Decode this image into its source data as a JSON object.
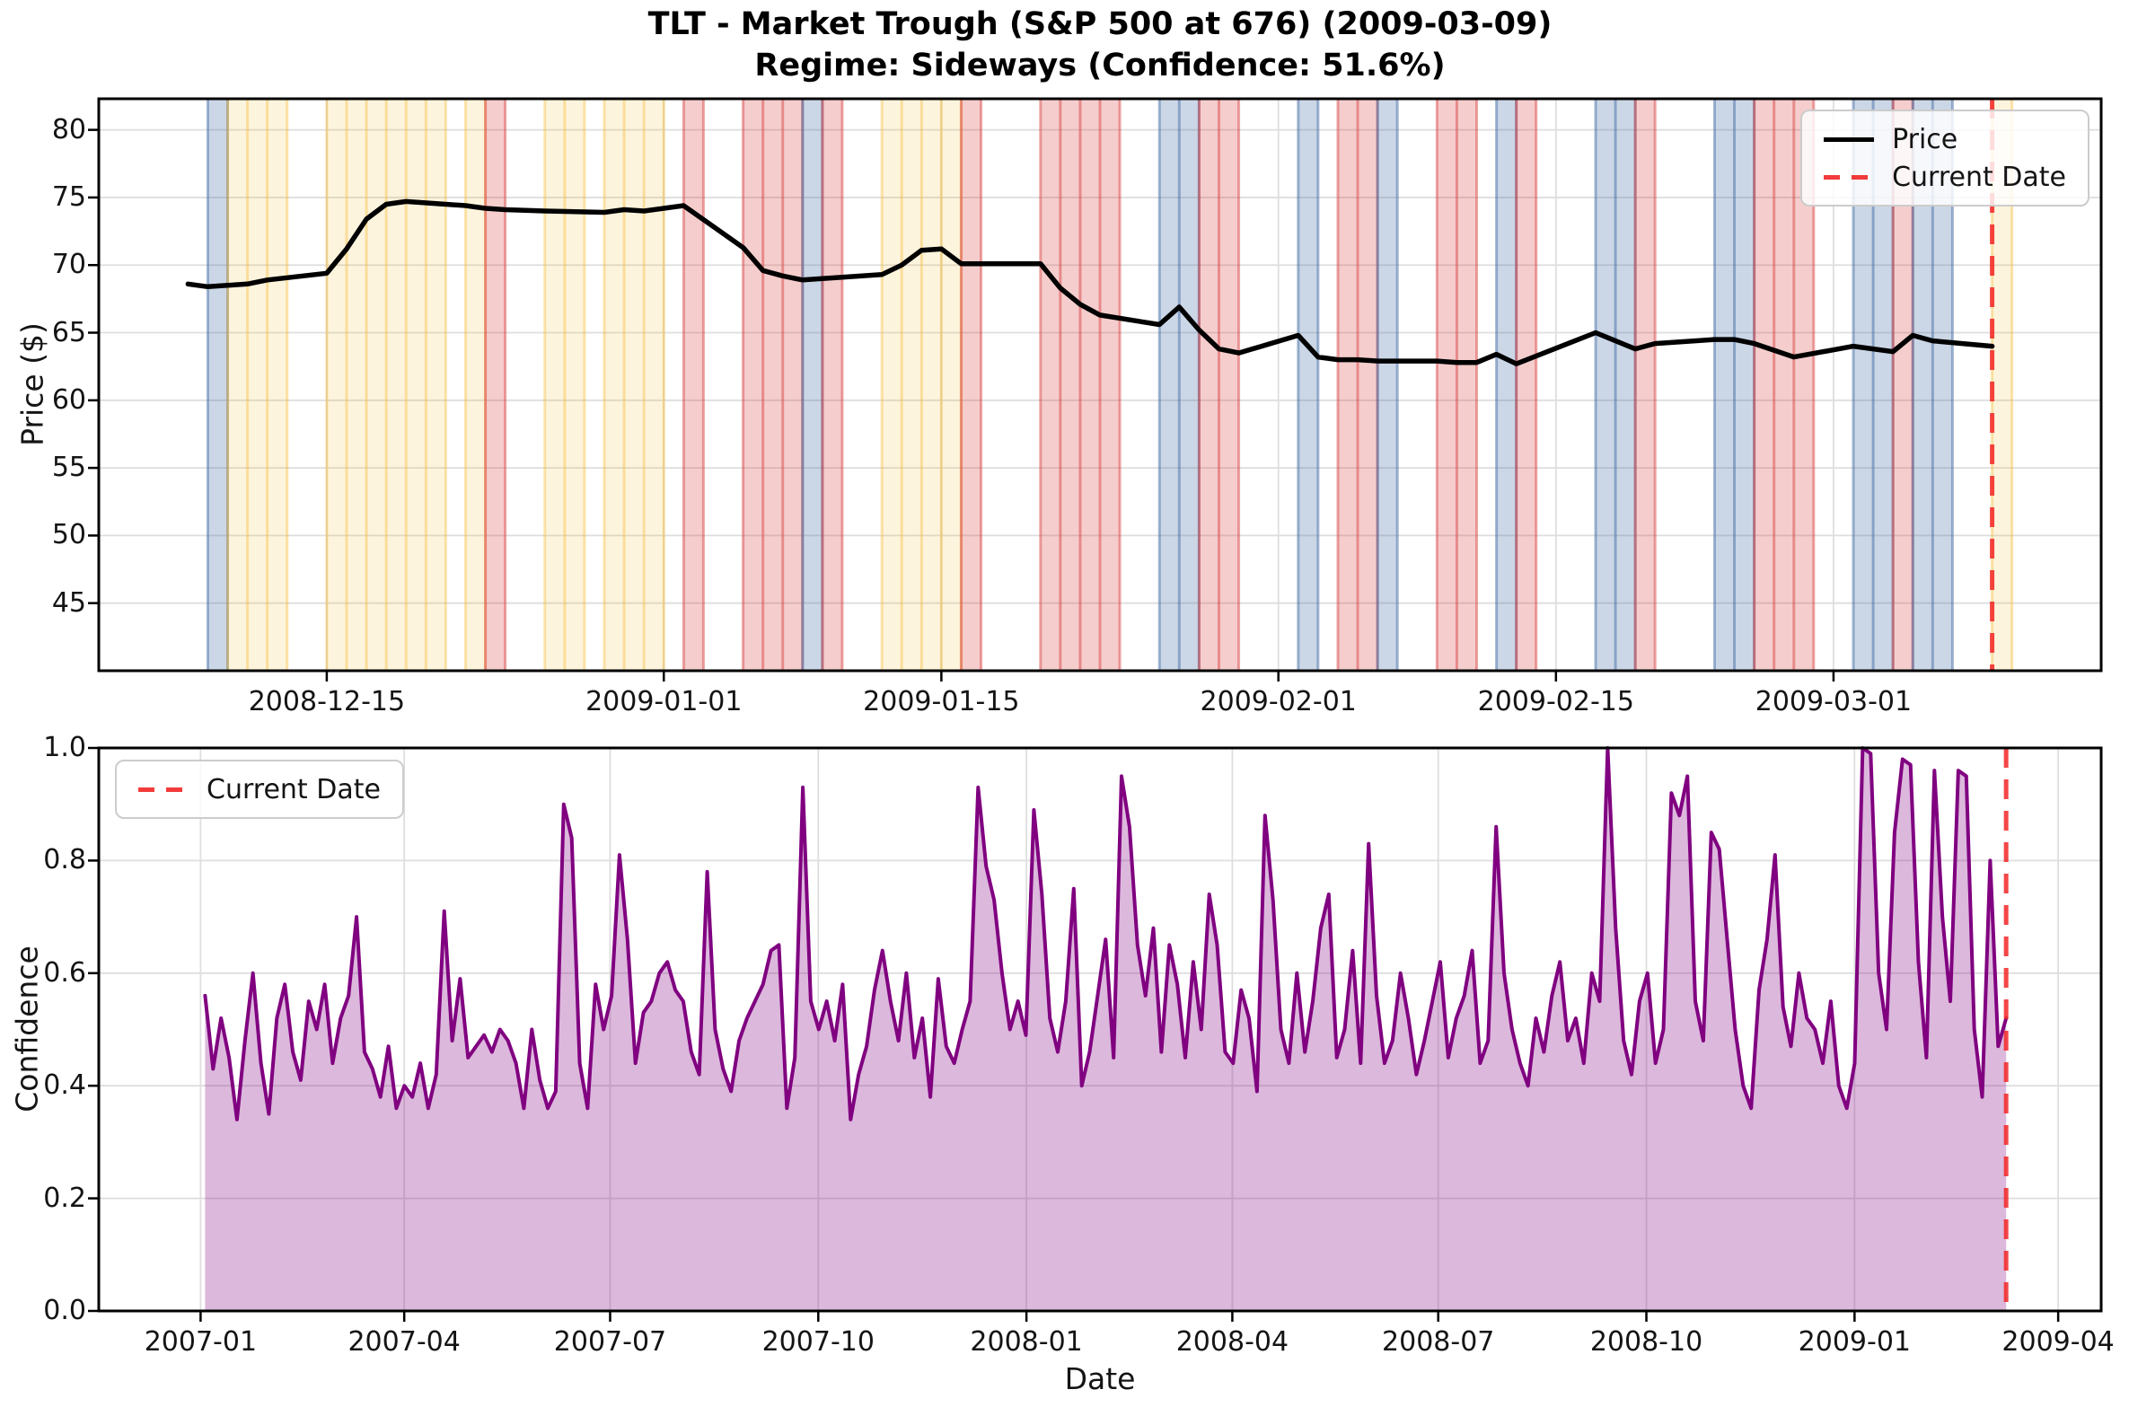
{
  "figure_title": "TLT - Market Trough (S&P 500 at 676) (2009-03-09)",
  "figure_subtitle": "Regime: Sideways (Confidence: 51.6%)",
  "colors": {
    "price_line": "#000000",
    "current_date_line": "rgba(242,38,38,0.85)",
    "confidence_line": "#800080",
    "confidence_fill": "rgba(128,0,128,0.28)",
    "grid": "#dedede",
    "spine": "#000000",
    "legend_border": "#cccccc",
    "regime_blue": "rgba(70,110,165,0.28)",
    "regime_blue_edge": "rgba(70,110,165,0.50)",
    "regime_yellow": "rgba(245,185,45,0.16)",
    "regime_yellow_edge": "rgba(245,185,45,0.38)",
    "regime_red": "rgba(214,57,57,0.25)",
    "regime_red_edge": "rgba(214,57,57,0.45)"
  },
  "chart_data": [
    {
      "id": "price",
      "type": "line",
      "title": "TLT - Market Trough (S&P 500 at 676) (2009-03-09)",
      "subtitle": "Regime: Sideways (Confidence: 51.6%)",
      "ylabel": "Price ($)",
      "xlabel": "",
      "ylim": [
        40,
        82.3
      ],
      "grid": true,
      "legend_position": "upper right",
      "yticks": [
        {
          "v": 45,
          "label": "45"
        },
        {
          "v": 50,
          "label": "50"
        },
        {
          "v": 55,
          "label": "55"
        },
        {
          "v": 60,
          "label": "60"
        },
        {
          "v": 65,
          "label": "65"
        },
        {
          "v": 70,
          "label": "70"
        },
        {
          "v": 75,
          "label": "75"
        },
        {
          "v": 80,
          "label": "80"
        }
      ],
      "x_domain": [
        "2008-12-03T12:00:00Z",
        "2009-03-14T12:00:00Z"
      ],
      "xticks": [
        {
          "date": "2008-12-15",
          "label": "2008-12-15"
        },
        {
          "date": "2009-01-01",
          "label": "2009-01-01"
        },
        {
          "date": "2009-01-15",
          "label": "2009-01-15"
        },
        {
          "date": "2009-02-01",
          "label": "2009-02-01"
        },
        {
          "date": "2009-02-15",
          "label": "2009-02-15"
        },
        {
          "date": "2009-03-01",
          "label": "2009-03-01"
        }
      ],
      "legend": [
        {
          "label": "Price",
          "style": "solid",
          "color": "#000000"
        },
        {
          "label": "Current Date",
          "style": "dashed",
          "color": "rgba(242,38,38,0.9)"
        }
      ],
      "current_date": "2009-03-09",
      "series": [
        {
          "name": "Price",
          "color": "#000000",
          "width": 5.5,
          "points": [
            [
              "2008-12-08",
              68.6
            ],
            [
              "2008-12-09",
              68.4
            ],
            [
              "2008-12-10",
              68.5
            ],
            [
              "2008-12-11",
              68.6
            ],
            [
              "2008-12-12",
              68.9
            ],
            [
              "2008-12-15",
              69.4
            ],
            [
              "2008-12-16",
              71.2
            ],
            [
              "2008-12-17",
              73.4
            ],
            [
              "2008-12-18",
              74.5
            ],
            [
              "2008-12-19",
              74.7
            ],
            [
              "2008-12-22",
              74.4
            ],
            [
              "2008-12-23",
              74.2
            ],
            [
              "2008-12-24",
              74.1
            ],
            [
              "2008-12-26",
              74.0
            ],
            [
              "2008-12-29",
              73.9
            ],
            [
              "2008-12-30",
              74.1
            ],
            [
              "2008-12-31",
              74.0
            ],
            [
              "2009-01-02",
              74.4
            ],
            [
              "2009-01-05",
              71.3
            ],
            [
              "2009-01-06",
              69.6
            ],
            [
              "2009-01-07",
              69.2
            ],
            [
              "2009-01-08",
              68.9
            ],
            [
              "2009-01-09",
              69.0
            ],
            [
              "2009-01-12",
              69.3
            ],
            [
              "2009-01-13",
              70.0
            ],
            [
              "2009-01-14",
              71.1
            ],
            [
              "2009-01-15",
              71.2
            ],
            [
              "2009-01-16",
              70.1
            ],
            [
              "2009-01-20",
              70.1
            ],
            [
              "2009-01-21",
              68.3
            ],
            [
              "2009-01-22",
              67.1
            ],
            [
              "2009-01-23",
              66.3
            ],
            [
              "2009-01-26",
              65.6
            ],
            [
              "2009-01-27",
              66.9
            ],
            [
              "2009-01-28",
              65.2
            ],
            [
              "2009-01-29",
              63.8
            ],
            [
              "2009-01-30",
              63.5
            ],
            [
              "2009-02-02",
              64.8
            ],
            [
              "2009-02-03",
              63.2
            ],
            [
              "2009-02-04",
              63.0
            ],
            [
              "2009-02-05",
              63.0
            ],
            [
              "2009-02-06",
              62.9
            ],
            [
              "2009-02-09",
              62.9
            ],
            [
              "2009-02-10",
              62.8
            ],
            [
              "2009-02-11",
              62.8
            ],
            [
              "2009-02-12",
              63.4
            ],
            [
              "2009-02-13",
              62.7
            ],
            [
              "2009-02-17",
              65.0
            ],
            [
              "2009-02-18",
              64.4
            ],
            [
              "2009-02-19",
              63.8
            ],
            [
              "2009-02-20",
              64.2
            ],
            [
              "2009-02-23",
              64.5
            ],
            [
              "2009-02-24",
              64.5
            ],
            [
              "2009-02-25",
              64.2
            ],
            [
              "2009-02-26",
              63.7
            ],
            [
              "2009-02-27",
              63.2
            ],
            [
              "2009-03-02",
              64.0
            ],
            [
              "2009-03-03",
              63.8
            ],
            [
              "2009-03-04",
              63.6
            ],
            [
              "2009-03-05",
              64.8
            ],
            [
              "2009-03-06",
              64.4
            ],
            [
              "2009-03-09",
              64.0
            ]
          ]
        }
      ],
      "regime_bands": [
        {
          "start": "2008-12-09",
          "end": "2008-12-10",
          "color": "blue"
        },
        {
          "start": "2008-12-10",
          "end": "2008-12-13",
          "color": "yellow"
        },
        {
          "start": "2008-12-15",
          "end": "2008-12-21",
          "color": "yellow"
        },
        {
          "start": "2008-12-22",
          "end": "2008-12-23",
          "color": "yellow"
        },
        {
          "start": "2008-12-23",
          "end": "2008-12-24",
          "color": "red"
        },
        {
          "start": "2008-12-26",
          "end": "2008-12-28",
          "color": "yellow"
        },
        {
          "start": "2008-12-29",
          "end": "2009-01-01",
          "color": "yellow"
        },
        {
          "start": "2009-01-02",
          "end": "2009-01-03",
          "color": "red"
        },
        {
          "start": "2009-01-05",
          "end": "2009-01-08",
          "color": "red"
        },
        {
          "start": "2009-01-08",
          "end": "2009-01-09",
          "color": "blue"
        },
        {
          "start": "2009-01-09",
          "end": "2009-01-10",
          "color": "red"
        },
        {
          "start": "2009-01-12",
          "end": "2009-01-16",
          "color": "yellow"
        },
        {
          "start": "2009-01-16",
          "end": "2009-01-17",
          "color": "red"
        },
        {
          "start": "2009-01-20",
          "end": "2009-01-24",
          "color": "red"
        },
        {
          "start": "2009-01-26",
          "end": "2009-01-28",
          "color": "blue"
        },
        {
          "start": "2009-01-28",
          "end": "2009-01-30",
          "color": "red"
        },
        {
          "start": "2009-02-02",
          "end": "2009-02-03",
          "color": "blue"
        },
        {
          "start": "2009-02-04",
          "end": "2009-02-06",
          "color": "red"
        },
        {
          "start": "2009-02-06",
          "end": "2009-02-07",
          "color": "blue"
        },
        {
          "start": "2009-02-09",
          "end": "2009-02-11",
          "color": "red"
        },
        {
          "start": "2009-02-12",
          "end": "2009-02-13",
          "color": "blue"
        },
        {
          "start": "2009-02-13",
          "end": "2009-02-14",
          "color": "red"
        },
        {
          "start": "2009-02-17",
          "end": "2009-02-19",
          "color": "blue"
        },
        {
          "start": "2009-02-19",
          "end": "2009-02-20",
          "color": "red"
        },
        {
          "start": "2009-02-23",
          "end": "2009-02-25",
          "color": "blue"
        },
        {
          "start": "2009-02-25",
          "end": "2009-02-28",
          "color": "red"
        },
        {
          "start": "2009-03-02",
          "end": "2009-03-04",
          "color": "blue"
        },
        {
          "start": "2009-03-04",
          "end": "2009-03-05",
          "color": "red"
        },
        {
          "start": "2009-03-05",
          "end": "2009-03-07",
          "color": "blue"
        },
        {
          "start": "2009-03-09",
          "end": "2009-03-10",
          "color": "yellow"
        }
      ]
    },
    {
      "id": "confidence",
      "type": "area",
      "title": "",
      "ylabel": "Confidence",
      "xlabel": "Date",
      "ylim": [
        0,
        1
      ],
      "grid": true,
      "legend_position": "upper left",
      "yticks": [
        {
          "v": 0.0,
          "label": "0.0"
        },
        {
          "v": 0.2,
          "label": "0.2"
        },
        {
          "v": 0.4,
          "label": "0.4"
        },
        {
          "v": 0.6,
          "label": "0.6"
        },
        {
          "v": 0.8,
          "label": "0.8"
        },
        {
          "v": 1.0,
          "label": "1.0"
        }
      ],
      "x_domain": [
        "2006-11-17",
        "2009-04-20"
      ],
      "xticks": [
        {
          "date": "2007-01-01",
          "label": "2007-01"
        },
        {
          "date": "2007-04-01",
          "label": "2007-04"
        },
        {
          "date": "2007-07-01",
          "label": "2007-07"
        },
        {
          "date": "2007-10-01",
          "label": "2007-10"
        },
        {
          "date": "2008-01-01",
          "label": "2008-01"
        },
        {
          "date": "2008-04-01",
          "label": "2008-04"
        },
        {
          "date": "2008-07-01",
          "label": "2008-07"
        },
        {
          "date": "2008-10-01",
          "label": "2008-10"
        },
        {
          "date": "2009-01-01",
          "label": "2009-01"
        },
        {
          "date": "2009-04-01",
          "label": "2009-04"
        }
      ],
      "legend": [
        {
          "label": "Current Date",
          "style": "dashed",
          "color": "rgba(242,38,38,0.9)"
        }
      ],
      "current_date": "2009-03-09",
      "series": [
        {
          "name": "Confidence",
          "color": "#800080",
          "width": 4,
          "fill": "rgba(128,0,128,0.28)",
          "start": "2007-01-03",
          "end": "2009-03-09",
          "values": [
            0.56,
            0.43,
            0.52,
            0.45,
            0.34,
            0.48,
            0.6,
            0.44,
            0.35,
            0.52,
            0.58,
            0.46,
            0.41,
            0.55,
            0.5,
            0.58,
            0.44,
            0.52,
            0.56,
            0.7,
            0.46,
            0.43,
            0.38,
            0.47,
            0.36,
            0.4,
            0.38,
            0.44,
            0.36,
            0.42,
            0.71,
            0.48,
            0.59,
            0.45,
            0.47,
            0.49,
            0.46,
            0.5,
            0.48,
            0.44,
            0.36,
            0.5,
            0.41,
            0.36,
            0.39,
            0.9,
            0.84,
            0.44,
            0.36,
            0.58,
            0.5,
            0.56,
            0.81,
            0.66,
            0.44,
            0.53,
            0.55,
            0.6,
            0.62,
            0.57,
            0.55,
            0.46,
            0.42,
            0.78,
            0.5,
            0.43,
            0.39,
            0.48,
            0.52,
            0.55,
            0.58,
            0.64,
            0.65,
            0.36,
            0.45,
            0.93,
            0.55,
            0.5,
            0.55,
            0.48,
            0.58,
            0.34,
            0.42,
            0.47,
            0.57,
            0.64,
            0.55,
            0.48,
            0.6,
            0.45,
            0.52,
            0.38,
            0.59,
            0.47,
            0.44,
            0.5,
            0.55,
            0.93,
            0.79,
            0.73,
            0.6,
            0.5,
            0.55,
            0.49,
            0.89,
            0.74,
            0.52,
            0.46,
            0.55,
            0.75,
            0.4,
            0.46,
            0.56,
            0.66,
            0.45,
            0.95,
            0.86,
            0.65,
            0.56,
            0.68,
            0.46,
            0.65,
            0.58,
            0.45,
            0.62,
            0.5,
            0.74,
            0.65,
            0.46,
            0.44,
            0.57,
            0.52,
            0.39,
            0.88,
            0.73,
            0.5,
            0.44,
            0.6,
            0.46,
            0.55,
            0.68,
            0.74,
            0.45,
            0.5,
            0.64,
            0.44,
            0.83,
            0.56,
            0.44,
            0.48,
            0.6,
            0.52,
            0.42,
            0.48,
            0.55,
            0.62,
            0.45,
            0.52,
            0.56,
            0.64,
            0.44,
            0.48,
            0.86,
            0.6,
            0.5,
            0.44,
            0.4,
            0.52,
            0.46,
            0.56,
            0.62,
            0.48,
            0.52,
            0.44,
            0.6,
            0.55,
            1.0,
            0.68,
            0.48,
            0.42,
            0.55,
            0.6,
            0.44,
            0.5,
            0.92,
            0.88,
            0.95,
            0.55,
            0.48,
            0.85,
            0.82,
            0.66,
            0.5,
            0.4,
            0.36,
            0.57,
            0.66,
            0.81,
            0.54,
            0.47,
            0.6,
            0.52,
            0.5,
            0.44,
            0.55,
            0.4,
            0.36,
            0.44,
            1.0,
            0.99,
            0.6,
            0.5,
            0.85,
            0.98,
            0.97,
            0.62,
            0.45,
            0.96,
            0.7,
            0.55,
            0.96,
            0.95,
            0.5,
            0.38,
            0.8,
            0.47,
            0.52
          ]
        }
      ]
    }
  ]
}
